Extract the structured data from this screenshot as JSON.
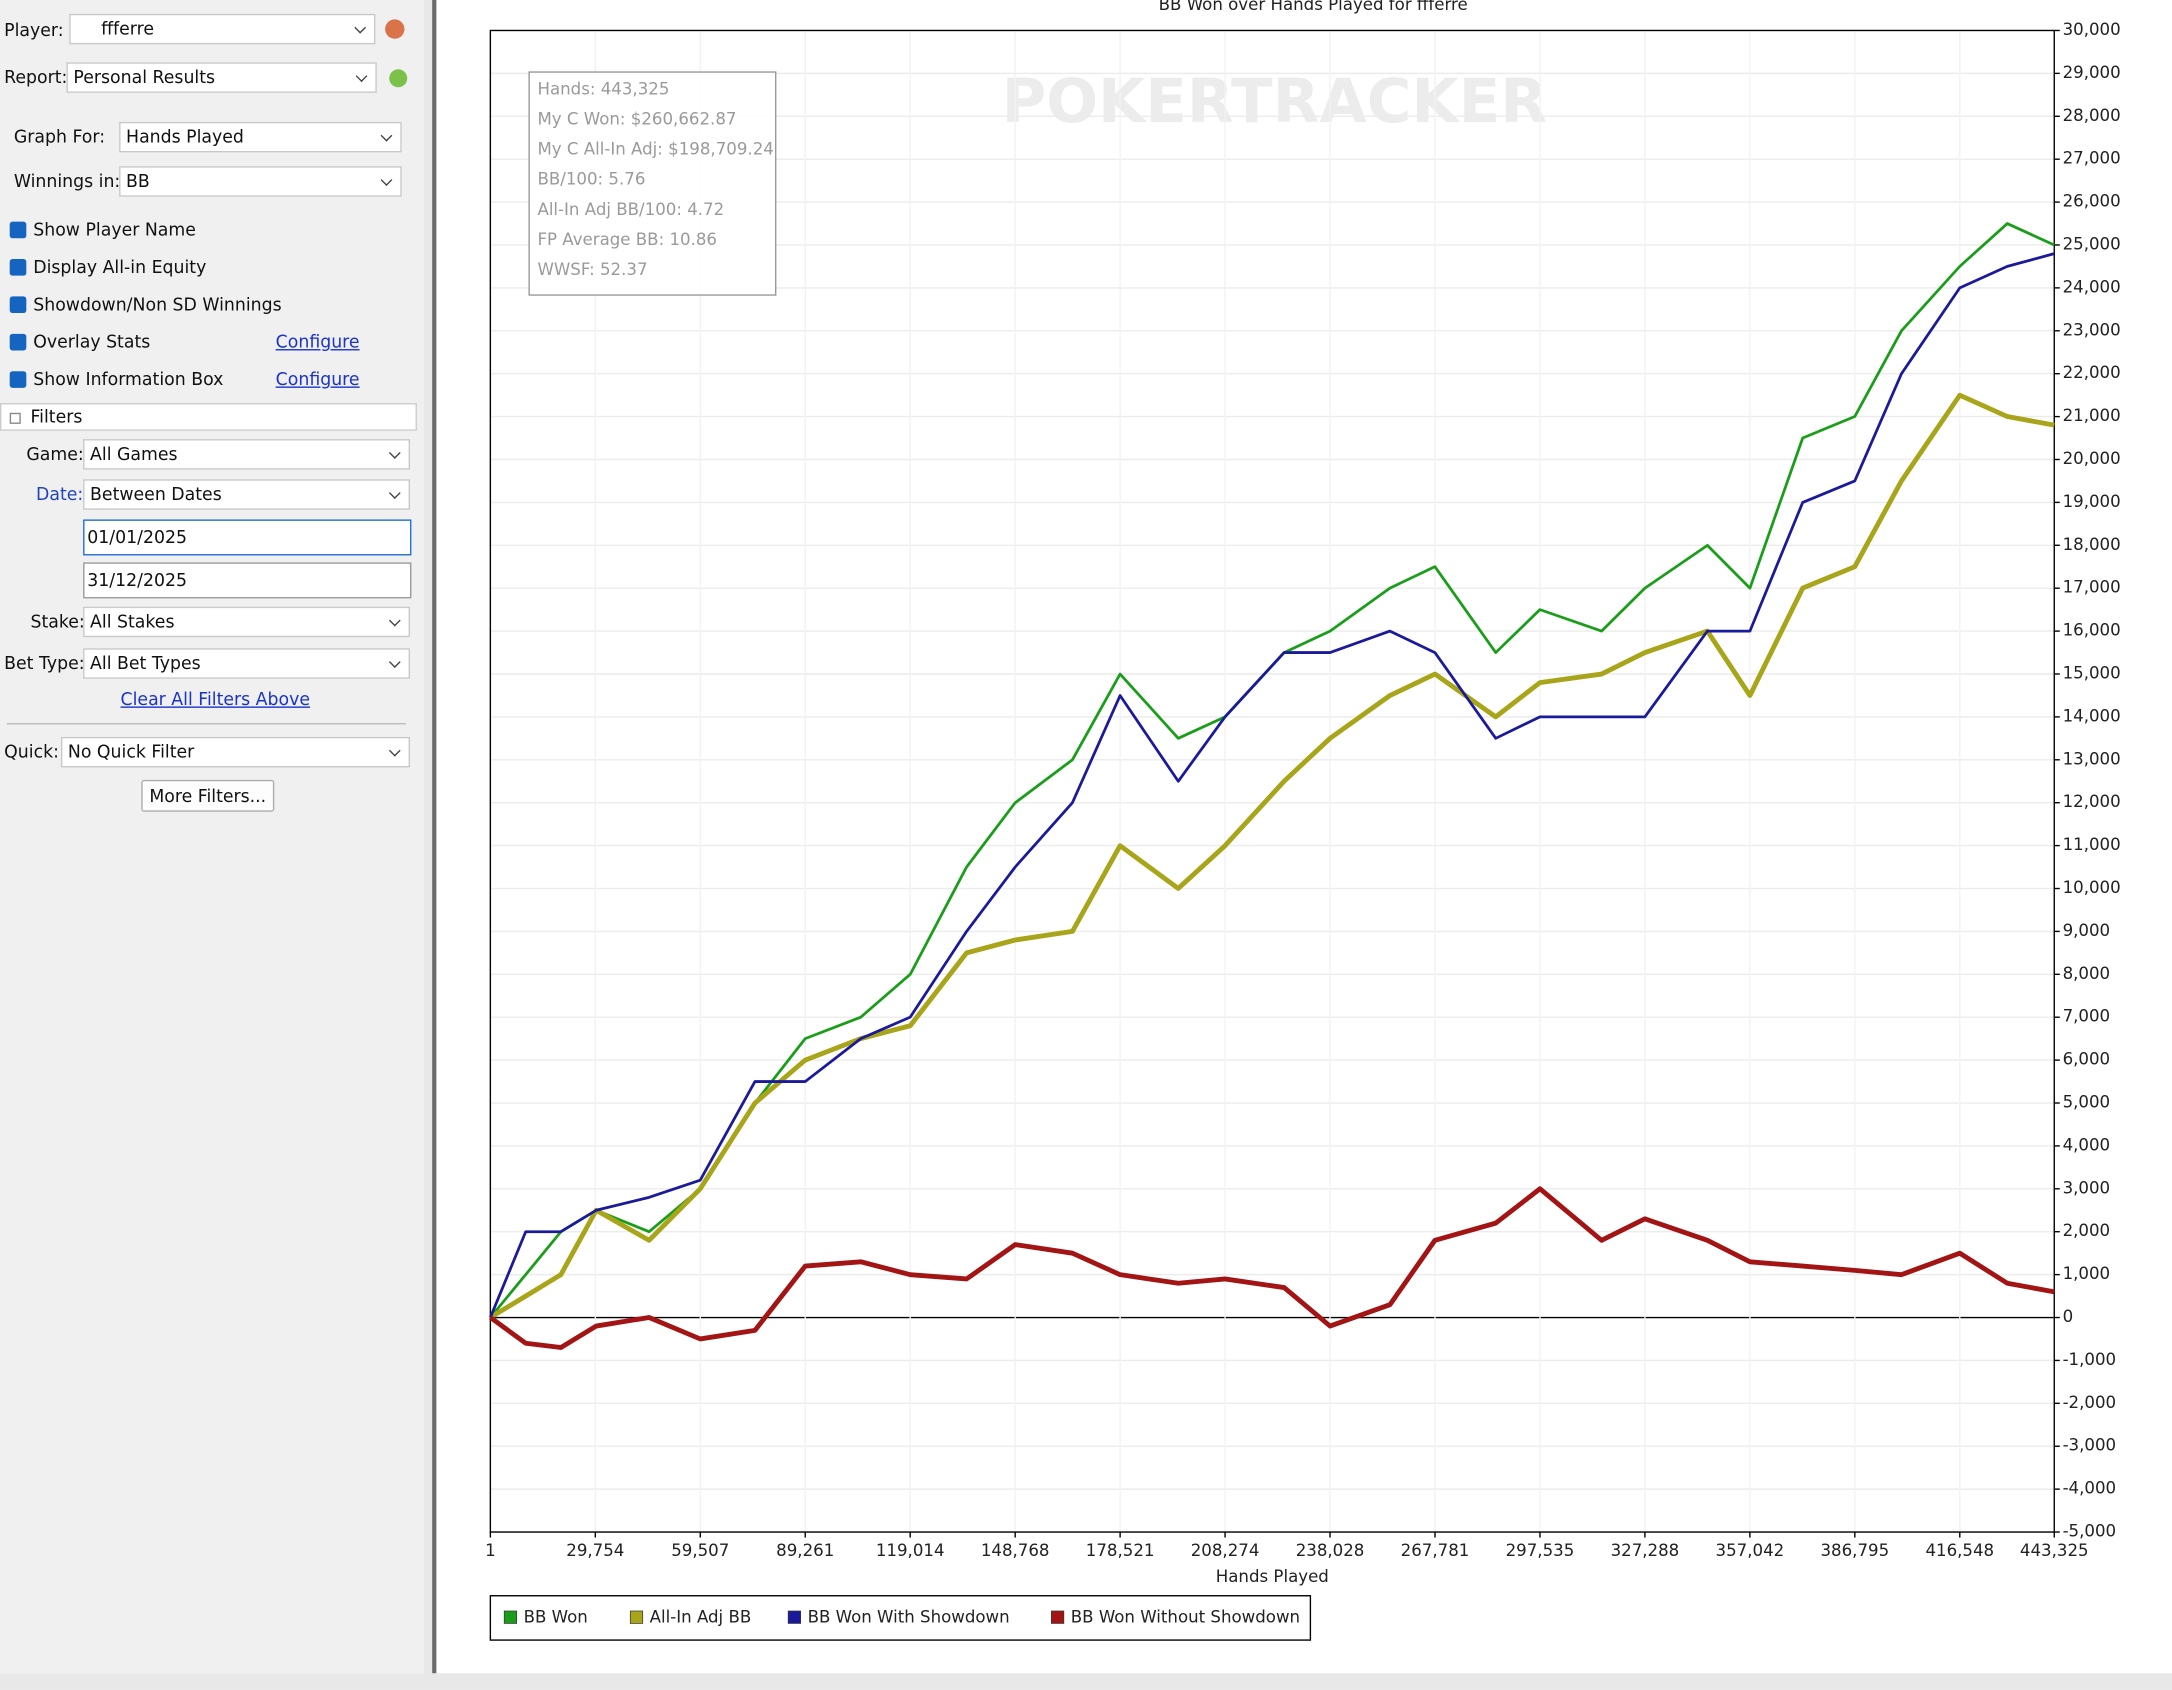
{
  "sidebar": {
    "player_label": "Player:",
    "player": "ffferre",
    "report_label": "Report:",
    "report": "Personal Results",
    "graph_for_label": "Graph For:",
    "graph_for": "Hands Played",
    "winnings_label": "Winnings in:",
    "winnings": "BB",
    "options": [
      "Show Player Name",
      "Display All-in Equity",
      "Showdown/Non SD Winnings",
      "Overlay Stats",
      "Show Information Box"
    ],
    "configure_links": [
      "Configure",
      "Configure"
    ],
    "filters_title": "Filters",
    "game_label": "Game:",
    "game": "All Games",
    "date_label": "Date:",
    "date": "Between Dates",
    "start_date": "01/01/2025",
    "end_date": "31/12/2025",
    "stake_label": "Stake:",
    "stake": "All Stakes",
    "bet_type_label": "Bet Type:",
    "bet_type": "All Bet Types",
    "clear_filters": "Clear All Filters Above",
    "quick_label": "Quick:",
    "quick": "No Quick Filter",
    "more_filters": "More Filters..."
  },
  "chart_data": {
    "type": "line",
    "title": "BB Won over Hands Played for ffferre",
    "x_label": "Hands Played",
    "watermark": "POKERTRACKER",
    "info_box": [
      "Hands: 443,325",
      "My C Won: $260,662.87",
      "My C All-In Adj: $198,709.24",
      "BB/100: 5.76",
      "All-In Adj BB/100: 4.72",
      "FP Average BB: 10.86",
      "WWSF: 52.37"
    ],
    "x": [
      1,
      10000,
      20000,
      30000,
      45000,
      59507,
      75000,
      89261,
      105000,
      119014,
      135000,
      148768,
      165000,
      178521,
      195000,
      208274,
      225000,
      238028,
      255000,
      267781,
      285000,
      297535,
      315000,
      327288,
      345000,
      357042,
      372000,
      386795,
      400000,
      416548,
      430000,
      443325
    ],
    "series": [
      {
        "name": "BB Won",
        "color": "#1a9e1a",
        "values": [
          0,
          1000,
          2000,
          2500,
          2000,
          3000,
          5000,
          6500,
          7000,
          8000,
          10500,
          12000,
          13000,
          15000,
          13500,
          14000,
          15500,
          16000,
          17000,
          17500,
          15500,
          16500,
          16000,
          17000,
          18000,
          17000,
          20500,
          21000,
          23000,
          24500,
          25500,
          25000
        ]
      },
      {
        "name": "All-In Adj BB",
        "color": "#a8a51a",
        "values": [
          0,
          500,
          1000,
          2500,
          1800,
          3000,
          5000,
          6000,
          6500,
          6800,
          8500,
          8800,
          9000,
          11000,
          10000,
          11000,
          12500,
          13500,
          14500,
          15000,
          14000,
          14800,
          15000,
          15500,
          16000,
          14500,
          17000,
          17500,
          19500,
          21500,
          21000,
          20800
        ]
      },
      {
        "name": "BB Won With Showdown",
        "color": "#1a1a9a",
        "values": [
          0,
          2000,
          2000,
          2500,
          2800,
          3200,
          5500,
          5500,
          6500,
          7000,
          9000,
          10500,
          12000,
          14500,
          12500,
          14000,
          15500,
          15500,
          16000,
          15500,
          13500,
          14000,
          14000,
          14000,
          16000,
          16000,
          19000,
          19500,
          22000,
          24000,
          24500,
          24800
        ]
      },
      {
        "name": "BB Won Without Showdown",
        "color": "#a31515",
        "values": [
          0,
          -600,
          -700,
          -200,
          0,
          -500,
          -300,
          1200,
          1300,
          1000,
          900,
          1700,
          1500,
          1000,
          800,
          900,
          700,
          -200,
          300,
          1800,
          2200,
          3000,
          1800,
          2300,
          1800,
          1300,
          1200,
          1100,
          1000,
          1500,
          800,
          600
        ]
      }
    ],
    "xlim": [
      1,
      443325
    ],
    "xticks": [
      1,
      {
        "value": 29754,
        "label": "29,754"
      },
      {
        "value": 59507,
        "label": "59,507"
      },
      {
        "value": 89261,
        "label": "89,261"
      },
      {
        "value": 119014,
        "label": "119,014"
      },
      {
        "value": 148768,
        "label": "148,768"
      },
      {
        "value": 178521,
        "label": "178,521"
      },
      {
        "value": 208274,
        "label": "208,274"
      },
      {
        "value": 238028,
        "label": "238,028"
      },
      {
        "value": 267781,
        "label": "267,781"
      },
      {
        "value": 297535,
        "label": "297,535"
      },
      {
        "value": 327288,
        "label": "327,288"
      },
      {
        "value": 357042,
        "label": "357,042"
      },
      {
        "value": 386795,
        "label": "386,795"
      },
      {
        "value": 416548,
        "label": "416,548"
      },
      {
        "value": 443325,
        "label": "443,325"
      }
    ],
    "ylim": [
      -5000,
      30000
    ],
    "yticks": [
      {
        "value": -5000,
        "label": "-5,000"
      },
      {
        "value": -4000,
        "label": "-4,000"
      },
      {
        "value": -3000,
        "label": "-3,000"
      },
      {
        "value": -2000,
        "label": "-2,000"
      },
      {
        "value": -1000,
        "label": "-1,000"
      },
      0,
      {
        "value": 1000,
        "label": "1,000"
      },
      {
        "value": 2000,
        "label": "2,000"
      },
      {
        "value": 3000,
        "label": "3,000"
      },
      {
        "value": 4000,
        "label": "4,000"
      },
      {
        "value": 5000,
        "label": "5,000"
      },
      {
        "value": 6000,
        "label": "6,000"
      },
      {
        "value": 7000,
        "label": "7,000"
      },
      {
        "value": 8000,
        "label": "8,000"
      },
      {
        "value": 9000,
        "label": "9,000"
      },
      {
        "value": 10000,
        "label": "10,000"
      },
      {
        "value": 11000,
        "label": "11,000"
      },
      {
        "value": 12000,
        "label": "12,000"
      },
      {
        "value": 13000,
        "label": "13,000"
      },
      {
        "value": 14000,
        "label": "14,000"
      },
      {
        "value": 15000,
        "label": "15,000"
      },
      {
        "value": 16000,
        "label": "16,000"
      },
      {
        "value": 17000,
        "label": "17,000"
      },
      {
        "value": 18000,
        "label": "18,000"
      },
      {
        "value": 19000,
        "label": "19,000"
      },
      {
        "value": 20000,
        "label": "20,000"
      },
      {
        "value": 21000,
        "label": "21,000"
      },
      {
        "value": 22000,
        "label": "22,000"
      },
      {
        "value": 23000,
        "label": "23,000"
      },
      {
        "value": 24000,
        "label": "24,000"
      },
      {
        "value": 25000,
        "label": "25,000"
      },
      {
        "value": 26000,
        "label": "26,000"
      },
      {
        "value": 27000,
        "label": "27,000"
      },
      {
        "value": 28000,
        "label": "28,000"
      },
      {
        "value": 29000,
        "label": "29,000"
      },
      {
        "value": 30000,
        "label": "30,000"
      }
    ],
    "grid": true
  }
}
